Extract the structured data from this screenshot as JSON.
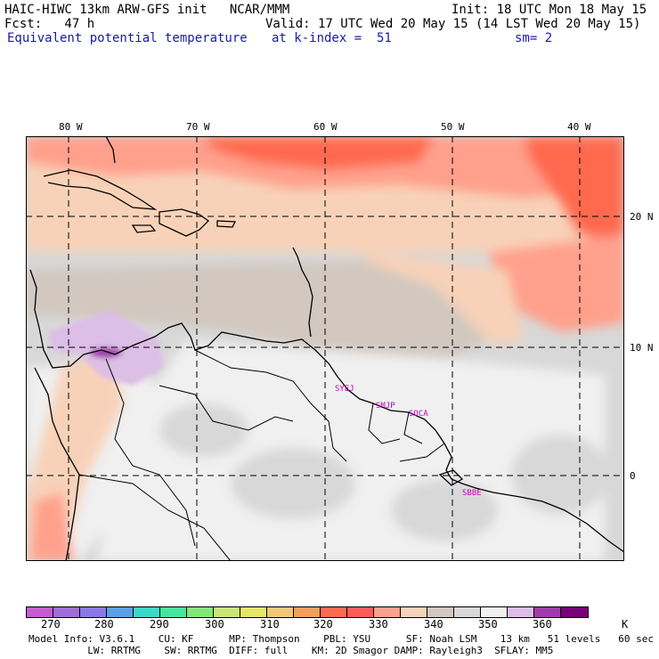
{
  "header": {
    "line1_left": "HAIC-HIWC 13km ARW-GFS init   NCAR/MMM",
    "line1_right": "Init: 18 UTC Mon 18 May 15",
    "line2_left": "Fcst:   47 h",
    "line2_right": "Valid: 17 UTC Wed 20 May 15 (14 LST Wed 20 May 15)",
    "line3_field": "Equivalent potential temperature",
    "line3_level": "at k-index =  51",
    "line3_smooth": "sm= 2"
  },
  "map": {
    "lon_labels": [
      "80 W",
      "70 W",
      "60 W",
      "50 W",
      "40 W"
    ],
    "lat_labels": [
      "20 N",
      "10 N",
      "0"
    ],
    "sites": [
      "SYEJ",
      "SMJP",
      "SOCA",
      "SBBE"
    ]
  },
  "colorbar": {
    "colors": [
      "#c85ad2",
      "#a06ed8",
      "#8a7ae6",
      "#5aa0e6",
      "#3cd8c8",
      "#46e6a0",
      "#82e678",
      "#c8e678",
      "#e6e668",
      "#f0c878",
      "#f0a058",
      "#ff6a50",
      "#ff5a5a",
      "#ffa08c",
      "#f8d2b8",
      "#d2c8c0",
      "#d8d8d8",
      "#f0f0f0",
      "#dcbee6",
      "#a03caa",
      "#780078"
    ],
    "ticks": [
      "270",
      "280",
      "290",
      "300",
      "310",
      "320",
      "330",
      "340",
      "350",
      "360",
      "K"
    ]
  },
  "footer": {
    "line1": "Model Info: V3.6.1    CU: KF      MP: Thompson    PBL: YSU      SF: Noah LSM    13 km   51 levels   60 sec",
    "line2": "          LW: RRTMG    SW: RRTMG  DIFF: full    KM: 2D Smagor DAMP: Rayleigh3  SFLAY: MM5"
  }
}
